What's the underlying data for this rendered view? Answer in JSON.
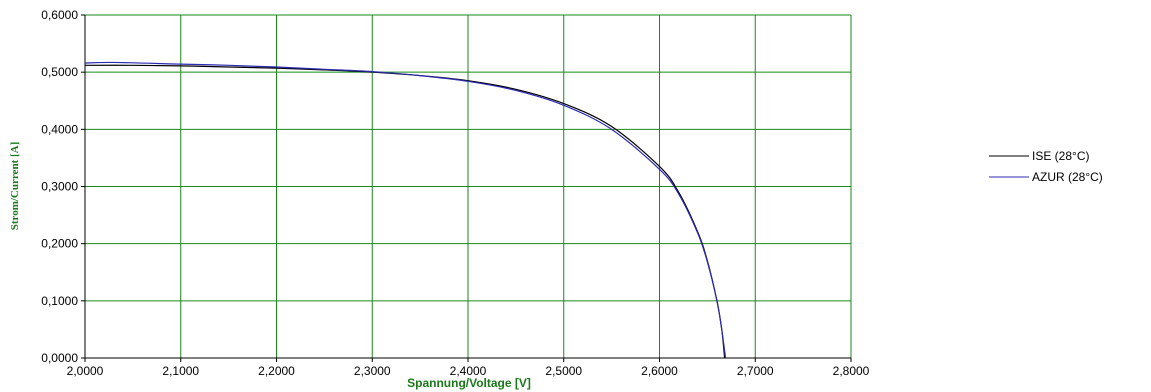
{
  "chart_data": {
    "type": "line",
    "title": "",
    "xlabel": "Spannung/Voltage [V]",
    "ylabel": "Strom/Current [A]",
    "xlim": [
      2.0,
      2.8
    ],
    "ylim": [
      0.0,
      0.6
    ],
    "x_ticks": [
      "2,0000",
      "2,1000",
      "2,2000",
      "2,3000",
      "2,4000",
      "2,5000",
      "2,6000",
      "2,7000",
      "2,8000"
    ],
    "y_ticks": [
      "0,0000",
      "0,1000",
      "0,2000",
      "0,3000",
      "0,4000",
      "0,5000",
      "0,6000"
    ],
    "grid": true,
    "legend_position": "right",
    "colors": {
      "grid": "#1a8a1a",
      "axis": "#000000",
      "ISE": "#000000",
      "AZUR": "#2b2bb0",
      "label": "#1a7a1a"
    },
    "series": [
      {
        "name": "ISE (28°C)",
        "x": [
          2.0,
          2.05,
          2.1,
          2.15,
          2.2,
          2.25,
          2.3,
          2.35,
          2.4,
          2.45,
          2.5,
          2.55,
          2.6,
          2.62,
          2.64,
          2.65,
          2.66,
          2.665,
          2.668
        ],
        "y": [
          0.512,
          0.512,
          0.511,
          0.509,
          0.507,
          0.504,
          0.5,
          0.494,
          0.485,
          0.47,
          0.445,
          0.405,
          0.335,
          0.29,
          0.22,
          0.17,
          0.1,
          0.05,
          0.0
        ]
      },
      {
        "name": "AZUR (28°C)",
        "x": [
          2.0,
          2.03,
          2.1,
          2.15,
          2.2,
          2.25,
          2.3,
          2.35,
          2.4,
          2.45,
          2.5,
          2.55,
          2.6,
          2.62,
          2.64,
          2.65,
          2.66,
          2.665,
          2.669
        ],
        "y": [
          0.516,
          0.517,
          0.514,
          0.512,
          0.509,
          0.505,
          0.501,
          0.494,
          0.484,
          0.468,
          0.442,
          0.4,
          0.33,
          0.287,
          0.218,
          0.168,
          0.1,
          0.05,
          0.0
        ]
      }
    ]
  }
}
